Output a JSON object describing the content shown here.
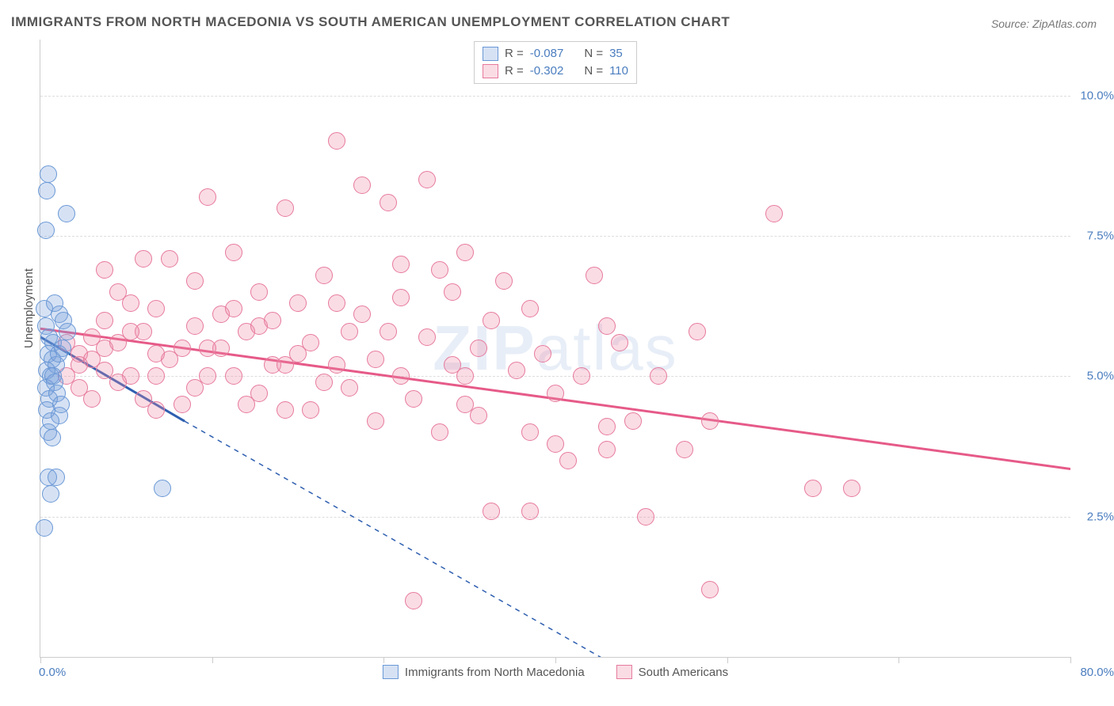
{
  "title": "IMMIGRANTS FROM NORTH MACEDONIA VS SOUTH AMERICAN UNEMPLOYMENT CORRELATION CHART",
  "source": "Source: ZipAtlas.com",
  "watermark": {
    "bold": "ZIP",
    "rest": "atlas"
  },
  "ylabel": "Unemployment",
  "chart": {
    "type": "scatter",
    "xlim": [
      0,
      80
    ],
    "ylim": [
      0,
      11
    ],
    "yticks": [
      2.5,
      5.0,
      7.5,
      10.0
    ],
    "ytick_labels": [
      "2.5%",
      "5.0%",
      "7.5%",
      "10.0%"
    ],
    "xticks": [
      0,
      13.33,
      26.67,
      40,
      53.33,
      66.67,
      80
    ],
    "x_left_label": "0.0%",
    "x_right_label": "80.0%",
    "background": "#ffffff",
    "grid_color": "#dddddd",
    "marker_radius": 11,
    "marker_border_width": 1.5,
    "series": [
      {
        "id": "blue",
        "label": "Immigrants from North Macedonia",
        "fill": "rgba(120,160,220,0.30)",
        "stroke": "#6a98d6",
        "R": "-0.087",
        "N": "35",
        "trend": {
          "x1": 0,
          "y1": 5.7,
          "x2": 11.2,
          "y2": 4.2,
          "ext_x2": 55,
          "ext_y2": -1.5,
          "color": "#2f5fb0",
          "width": 3,
          "dash": "6,6"
        },
        "points": [
          [
            0.6,
            8.6
          ],
          [
            0.5,
            8.3
          ],
          [
            0.4,
            7.6
          ],
          [
            2.0,
            7.9
          ],
          [
            0.3,
            2.3
          ],
          [
            0.8,
            2.9
          ],
          [
            0.6,
            3.2
          ],
          [
            1.2,
            3.2
          ],
          [
            1.5,
            6.1
          ],
          [
            1.8,
            6.0
          ],
          [
            0.4,
            5.9
          ],
          [
            0.7,
            5.7
          ],
          [
            1.0,
            5.6
          ],
          [
            0.6,
            5.4
          ],
          [
            0.9,
            5.3
          ],
          [
            1.2,
            5.2
          ],
          [
            0.5,
            5.1
          ],
          [
            0.8,
            5.0
          ],
          [
            1.1,
            4.9
          ],
          [
            0.4,
            4.8
          ],
          [
            0.7,
            4.6
          ],
          [
            9.5,
            3.0
          ],
          [
            1.5,
            4.3
          ],
          [
            0.6,
            4.0
          ],
          [
            0.9,
            3.9
          ],
          [
            1.3,
            4.7
          ],
          [
            1.7,
            5.5
          ],
          [
            2.1,
            5.8
          ],
          [
            0.5,
            4.4
          ],
          [
            0.8,
            4.2
          ],
          [
            1.0,
            5.0
          ],
          [
            1.4,
            5.4
          ],
          [
            0.3,
            6.2
          ],
          [
            1.1,
            6.3
          ],
          [
            1.6,
            4.5
          ]
        ]
      },
      {
        "id": "pink",
        "label": "South Americans",
        "fill": "rgba(240,140,170,0.30)",
        "stroke": "#e77a9c",
        "R": "-0.302",
        "N": "110",
        "trend": {
          "x1": 0,
          "y1": 5.85,
          "x2": 80,
          "y2": 3.35,
          "color": "#e65a88",
          "width": 3
        },
        "points": [
          [
            2,
            5.6
          ],
          [
            3,
            5.4
          ],
          [
            4,
            5.3
          ],
          [
            5,
            5.5
          ],
          [
            6,
            5.6
          ],
          [
            6,
            6.5
          ],
          [
            7,
            5.0
          ],
          [
            8,
            5.8
          ],
          [
            8,
            7.1
          ],
          [
            9,
            6.2
          ],
          [
            10,
            7.1
          ],
          [
            10,
            5.3
          ],
          [
            11,
            5.5
          ],
          [
            12,
            4.8
          ],
          [
            12,
            6.7
          ],
          [
            13,
            8.2
          ],
          [
            14,
            6.1
          ],
          [
            14,
            5.5
          ],
          [
            15,
            5.0
          ],
          [
            15,
            7.2
          ],
          [
            16,
            5.8
          ],
          [
            17,
            5.9
          ],
          [
            17,
            4.7
          ],
          [
            18,
            6.0
          ],
          [
            18,
            5.2
          ],
          [
            19,
            4.4
          ],
          [
            19,
            8.0
          ],
          [
            20,
            6.3
          ],
          [
            20,
            5.4
          ],
          [
            21,
            5.6
          ],
          [
            22,
            6.8
          ],
          [
            22,
            4.9
          ],
          [
            23,
            9.2
          ],
          [
            23,
            5.2
          ],
          [
            24,
            5.8
          ],
          [
            25,
            8.4
          ],
          [
            25,
            6.1
          ],
          [
            26,
            5.3
          ],
          [
            26,
            4.2
          ],
          [
            27,
            5.8
          ],
          [
            27,
            8.1
          ],
          [
            28,
            6.4
          ],
          [
            28,
            5.0
          ],
          [
            29,
            4.6
          ],
          [
            29,
            1.0
          ],
          [
            30,
            8.5
          ],
          [
            30,
            5.7
          ],
          [
            31,
            6.9
          ],
          [
            31,
            4.0
          ],
          [
            32,
            5.2
          ],
          [
            32,
            6.5
          ],
          [
            33,
            5.0
          ],
          [
            33,
            7.2
          ],
          [
            34,
            5.5
          ],
          [
            34,
            4.3
          ],
          [
            35,
            6.0
          ],
          [
            35,
            2.6
          ],
          [
            36,
            6.7
          ],
          [
            37,
            5.1
          ],
          [
            38,
            4.0
          ],
          [
            38,
            2.6
          ],
          [
            39,
            5.4
          ],
          [
            40,
            4.7
          ],
          [
            40,
            3.8
          ],
          [
            41,
            3.5
          ],
          [
            42,
            5.0
          ],
          [
            43,
            6.8
          ],
          [
            44,
            4.1
          ],
          [
            44,
            3.7
          ],
          [
            45,
            5.6
          ],
          [
            46,
            4.2
          ],
          [
            47,
            2.5
          ],
          [
            48,
            5.0
          ],
          [
            50,
            3.7
          ],
          [
            51,
            5.8
          ],
          [
            52,
            4.2
          ],
          [
            3,
            5.2
          ],
          [
            4,
            5.7
          ],
          [
            5,
            5.1
          ],
          [
            6,
            4.9
          ],
          [
            7,
            5.8
          ],
          [
            8,
            4.6
          ],
          [
            9,
            5.4
          ],
          [
            11,
            4.5
          ],
          [
            13,
            5.0
          ],
          [
            16,
            4.5
          ],
          [
            5,
            6.9
          ],
          [
            7,
            6.3
          ],
          [
            9,
            4.4
          ],
          [
            12,
            5.9
          ],
          [
            15,
            6.2
          ],
          [
            21,
            4.4
          ],
          [
            24,
            4.8
          ],
          [
            57,
            7.9
          ],
          [
            52,
            1.2
          ],
          [
            60,
            3.0
          ],
          [
            63,
            3.0
          ],
          [
            2,
            5.0
          ],
          [
            3,
            4.8
          ],
          [
            4,
            4.6
          ],
          [
            5,
            6.0
          ],
          [
            13,
            5.5
          ],
          [
            19,
            5.2
          ],
          [
            23,
            6.3
          ],
          [
            28,
            7.0
          ],
          [
            33,
            4.5
          ],
          [
            38,
            6.2
          ],
          [
            44,
            5.9
          ],
          [
            17,
            6.5
          ],
          [
            9,
            5.0
          ]
        ]
      }
    ]
  },
  "legend_top_labels": {
    "R": "R =",
    "N": "N ="
  },
  "legend_bottom": [
    {
      "series": "blue"
    },
    {
      "series": "pink"
    }
  ]
}
